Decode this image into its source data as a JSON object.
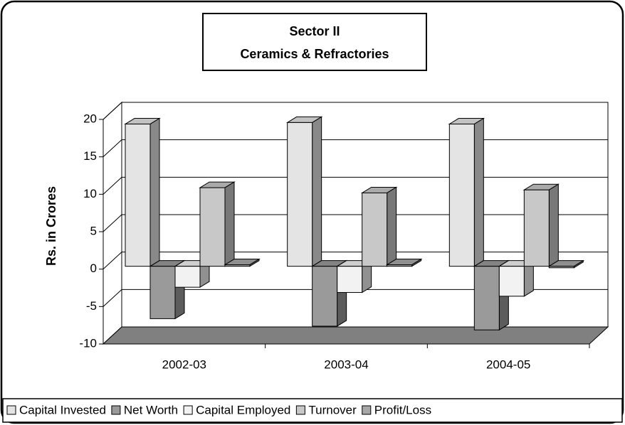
{
  "chart_data": {
    "type": "bar3d",
    "title": [
      "Sector II",
      "Ceramics & Refractories"
    ],
    "ylabel": "Rs. in Crores",
    "categories": [
      "2002-03",
      "2003-04",
      "2004-05"
    ],
    "series": [
      {
        "name": "Capital Invested",
        "color": "#e4e4e4",
        "values": [
          19,
          19.2,
          19
        ]
      },
      {
        "name": "Net Worth",
        "color": "#9a9a9a",
        "values": [
          -7,
          -8,
          -8.5
        ]
      },
      {
        "name": "Capital Employed",
        "color": "#f2f2f2",
        "values": [
          -2.8,
          -3.5,
          -4
        ]
      },
      {
        "name": "Turnover",
        "color": "#c8c8c8",
        "values": [
          10.5,
          9.8,
          10.2
        ]
      },
      {
        "name": "Profit/Loss",
        "color": "#a8a8a8",
        "values": [
          0.2,
          0.2,
          -0.2
        ]
      }
    ],
    "ylim": [
      -10,
      20
    ],
    "yticks": [
      -10,
      -5,
      0,
      5,
      10,
      15,
      20
    ],
    "grid": true,
    "legend": "bottom"
  }
}
